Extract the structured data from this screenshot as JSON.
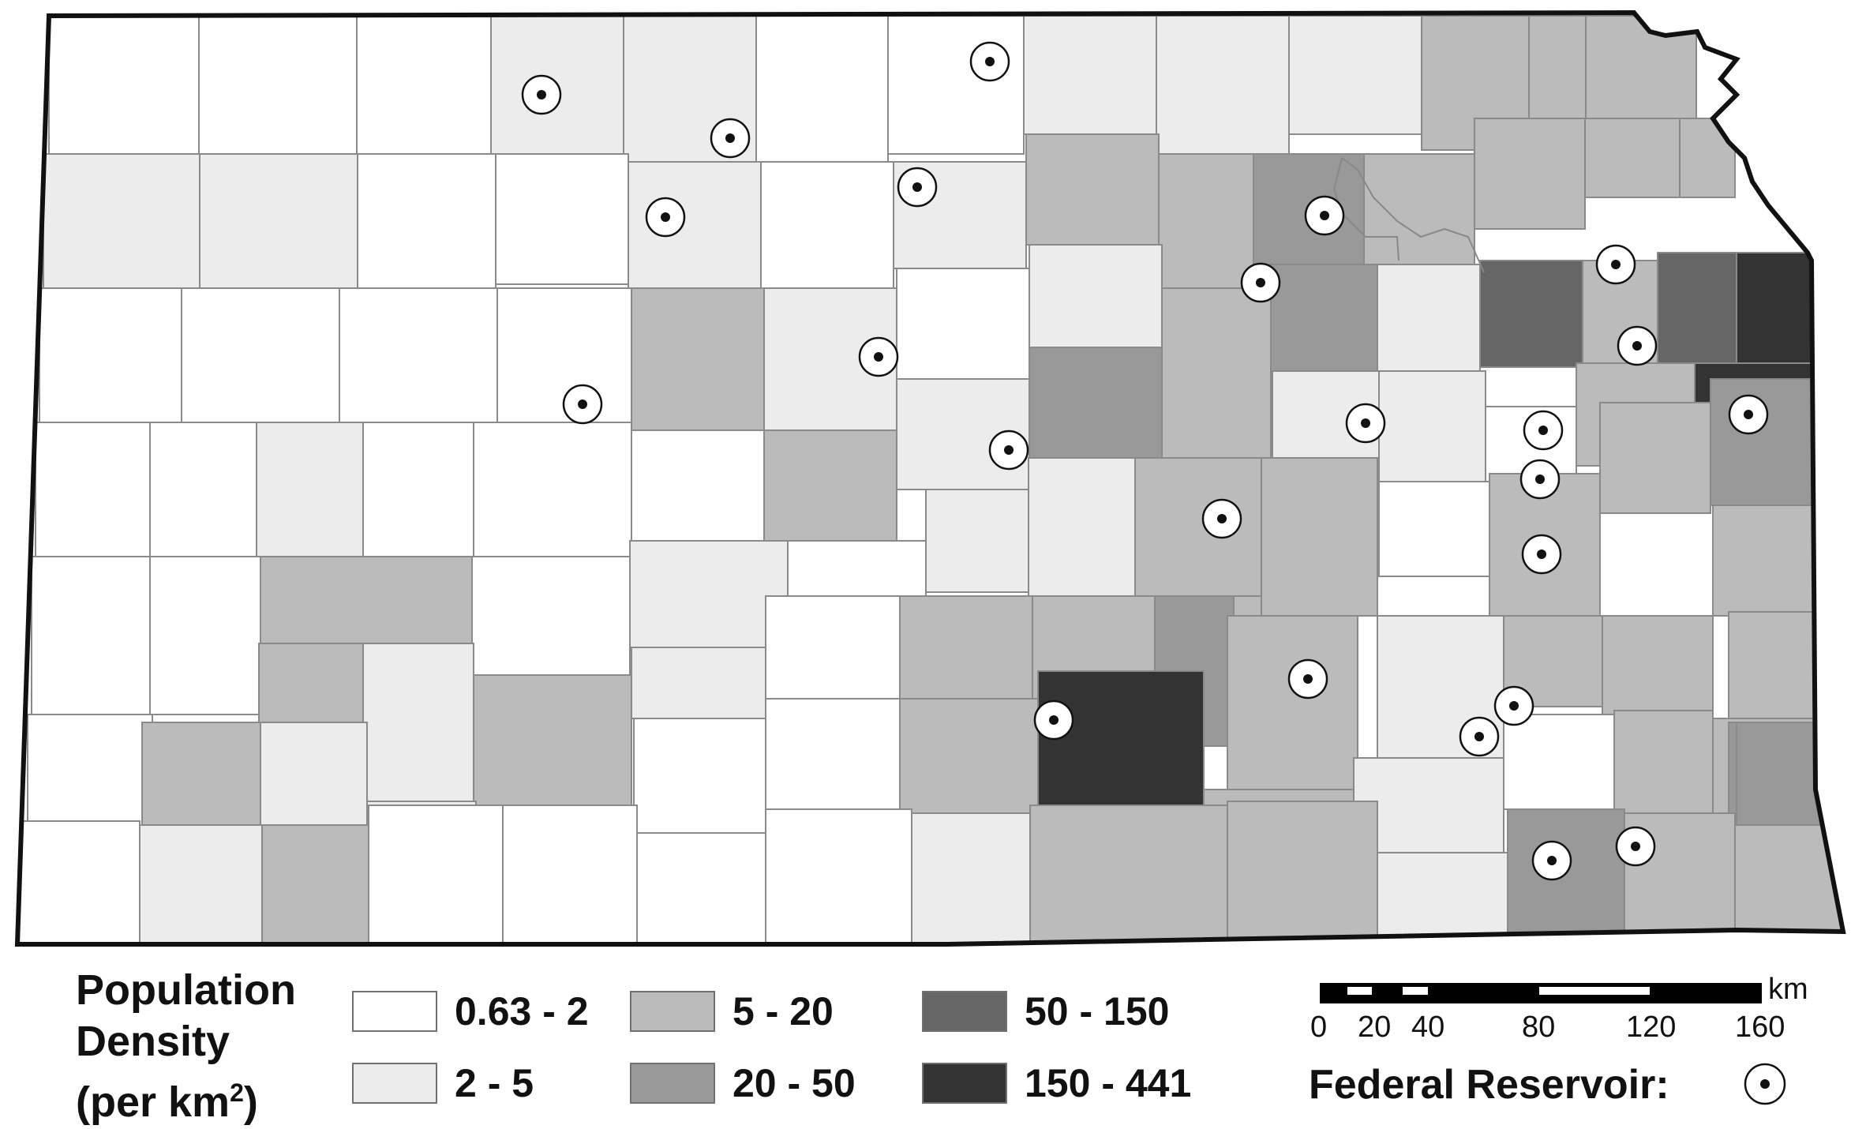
{
  "colors": {
    "0.63 - 2": "#ffffff",
    "2 - 5": "#ececec",
    "5 - 20": "#bbbbbb",
    "20 - 50": "#999999",
    "50 - 150": "#666666",
    "150 - 441": "#333333"
  },
  "legend": {
    "title_line1": "Population",
    "title_line2": "Density",
    "title_line3_prefix": "(per km",
    "title_line3_sup": "2",
    "title_line3_suffix": ")",
    "classes": [
      {
        "label": "0.63 - 2",
        "color": "#ffffff"
      },
      {
        "label": "2 - 5",
        "color": "#ececec"
      },
      {
        "label": "5 - 20",
        "color": "#bbbbbb"
      },
      {
        "label": "20 - 50",
        "color": "#999999"
      },
      {
        "label": "50 - 150",
        "color": "#666666"
      },
      {
        "label": "150 - 441",
        "color": "#333333"
      }
    ]
  },
  "scale_bar": {
    "unit": "km",
    "ticks": [
      "0",
      "20",
      "40",
      "80",
      "120",
      "160"
    ]
  },
  "reservoir_legend": {
    "label": "Federal Reservoir:",
    "icon": "reservoir-symbol-icon"
  }
}
